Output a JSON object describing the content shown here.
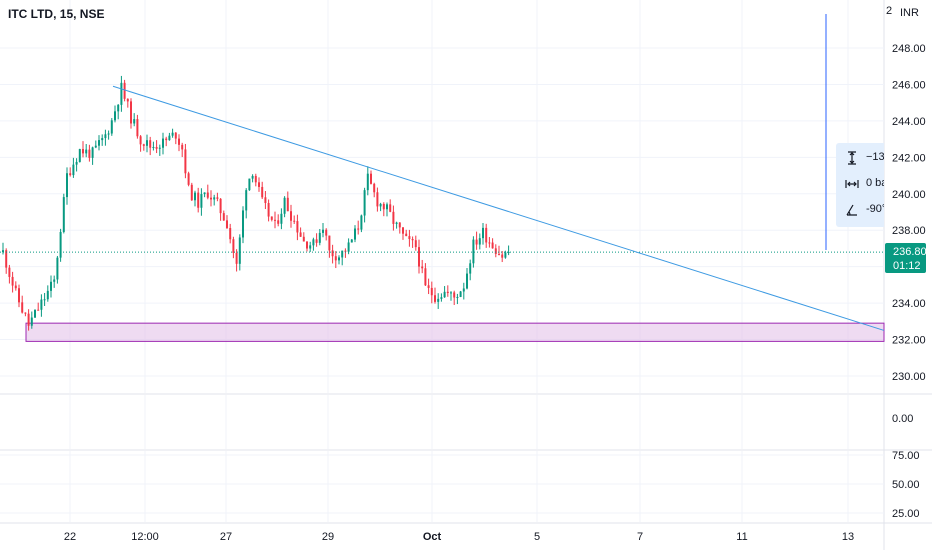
{
  "header": {
    "symbol_title": "ITC LTD, 15, NSE",
    "currency": "INR",
    "top_price_partial": "2"
  },
  "measure": {
    "price_change": "−13",
    "bars": "0 ba",
    "angle": "-90°"
  },
  "last_price": {
    "value": "236.80",
    "countdown": "01:12"
  },
  "colors": {
    "up": "#089981",
    "down": "#f23645",
    "trendline": "#3d9ae2",
    "zone_fill": "#e1bee7",
    "zone_border": "#9c27b0",
    "vline": "#2962ff"
  },
  "chart_data": [
    {
      "type": "candlestick",
      "title": "ITC LTD, 15, NSE",
      "ylabel": "INR",
      "ylim": [
        229,
        249
      ],
      "y_ticks": [
        "230.00",
        "232.00",
        "234.00",
        "236.00",
        "238.00",
        "240.00",
        "242.00",
        "244.00",
        "246.00",
        "248.00"
      ],
      "x_ticks": [
        "22",
        "12:00",
        "27",
        "29",
        "Oct",
        "5",
        "7",
        "11",
        "13"
      ],
      "last_price": 236.8,
      "anchors": [
        [
          0,
          236.8
        ],
        [
          4,
          234.5
        ],
        [
          8,
          232.8
        ],
        [
          12,
          234
        ],
        [
          16,
          235.2
        ],
        [
          20,
          241
        ],
        [
          24,
          242.4
        ],
        [
          28,
          242.2
        ],
        [
          32,
          243.2
        ],
        [
          34,
          244
        ],
        [
          37,
          245.8
        ],
        [
          40,
          244.2
        ],
        [
          43,
          243
        ],
        [
          46,
          242.6
        ],
        [
          50,
          242.8
        ],
        [
          54,
          243.3
        ],
        [
          56,
          242.5
        ],
        [
          58,
          240.2
        ],
        [
          61,
          239.5
        ],
        [
          64,
          240.1
        ],
        [
          67,
          239.4
        ],
        [
          70,
          238.4
        ],
        [
          73,
          236
        ],
        [
          76,
          240.5
        ],
        [
          78,
          241.3
        ],
        [
          81,
          239.5
        ],
        [
          85,
          238.2
        ],
        [
          88,
          239.6
        ],
        [
          91,
          238.5
        ],
        [
          94,
          237.4
        ],
        [
          97,
          237.2
        ],
        [
          100,
          238.3
        ],
        [
          102,
          236.8
        ],
        [
          105,
          236.6
        ],
        [
          108,
          237.1
        ],
        [
          111,
          238.2
        ],
        [
          114,
          240.8
        ],
        [
          117,
          239.6
        ],
        [
          120,
          239.1
        ],
        [
          123,
          238.2
        ],
        [
          126,
          237.4
        ],
        [
          129,
          237.1
        ],
        [
          132,
          234.8
        ],
        [
          135,
          234.4
        ],
        [
          138,
          234.6
        ],
        [
          141,
          234.3
        ],
        [
          144,
          235
        ],
        [
          147,
          237.2
        ],
        [
          150,
          237.9
        ],
        [
          153,
          237.2
        ],
        [
          156,
          236.6
        ],
        [
          158,
          236.8
        ]
      ],
      "trendline": {
        "from": {
          "x": "21 Sep",
          "y": 245.9
        },
        "to": {
          "x": "13 Oct",
          "y": 232.5
        }
      },
      "support_zone": {
        "y_from": 231.9,
        "y_to": 232.9
      }
    },
    {
      "type": "line",
      "ylim": [
        0,
        100
      ],
      "y_ticks": [
        "0.00"
      ],
      "values": [
        0
      ]
    },
    {
      "type": "line",
      "ylim": [
        0,
        100
      ],
      "y_ticks": [
        "75.00",
        "50.00",
        "25.00"
      ],
      "values": [
        50
      ]
    }
  ]
}
